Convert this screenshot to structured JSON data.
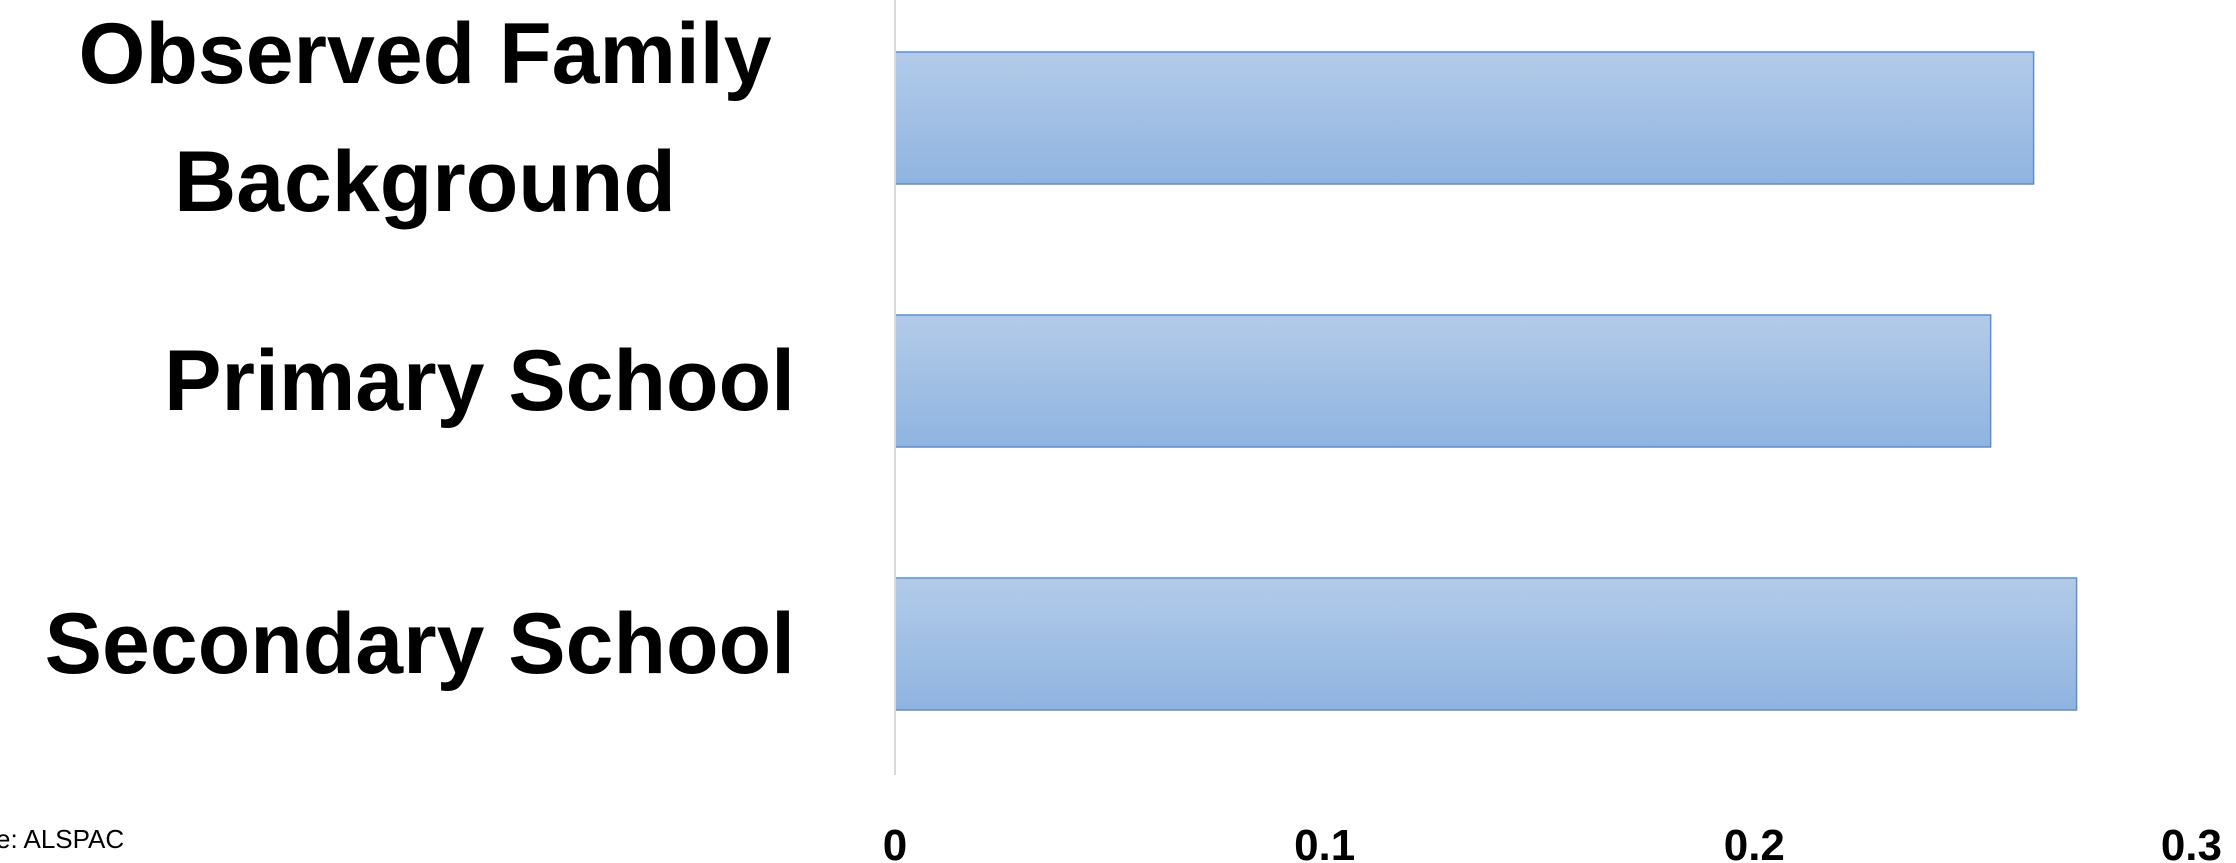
{
  "chart_data": {
    "type": "bar",
    "orientation": "horizontal",
    "categories": [
      [
        "Observed Family",
        "Background"
      ],
      [
        "Primary School"
      ],
      [
        "Secondary School"
      ]
    ],
    "values": [
      0.265,
      0.255,
      0.275
    ],
    "xlim": [
      0,
      0.3
    ],
    "x_ticks": [
      0,
      0.1,
      0.2,
      0.3
    ],
    "x_tick_labels": [
      "0",
      "0.1",
      "0.2",
      "0.3"
    ],
    "title": "",
    "xlabel": "",
    "ylabel": "",
    "grid": false,
    "colors": {
      "bar_top": "#b3cbe9",
      "bar_bottom": "#8fb4e0",
      "bar_stroke": "#5b8fd0",
      "axis": "#d9d9d9"
    },
    "source_note": "e: ALSPAC"
  }
}
